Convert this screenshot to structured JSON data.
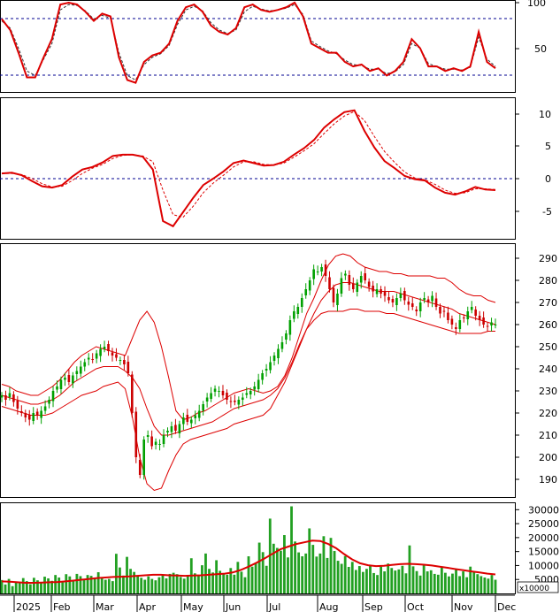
{
  "chart_data": [
    {
      "type": "line",
      "panel": "oscillator-top",
      "ylim": [
        0,
        100
      ],
      "y_ticks": [
        "100",
        "50"
      ],
      "reference_lines": [
        80,
        20
      ],
      "series": [
        {
          "values": [
            82,
            70,
            45,
            18,
            18,
            40,
            60,
            98,
            100,
            98,
            90,
            80,
            88,
            85,
            40,
            15,
            12,
            35,
            42,
            45,
            55,
            80,
            95,
            98,
            90,
            75,
            68,
            65,
            72,
            95,
            98,
            92,
            90,
            92,
            95,
            100,
            85,
            55,
            50,
            45,
            45,
            35,
            30,
            32,
            25,
            28,
            20,
            25,
            35,
            60,
            50,
            30,
            30,
            25,
            28,
            25,
            30,
            68,
            35,
            28
          ]
        },
        {
          "values": [
            80,
            72,
            50,
            25,
            20,
            38,
            55,
            92,
            98,
            97,
            91,
            82,
            86,
            83,
            45,
            20,
            15,
            32,
            40,
            44,
            53,
            76,
            92,
            96,
            91,
            78,
            70,
            66,
            70,
            90,
            96,
            93,
            91,
            92,
            94,
            98,
            87,
            58,
            52,
            47,
            44,
            37,
            32,
            31,
            27,
            27,
            22,
            24,
            32,
            55,
            50,
            33,
            30,
            27,
            27,
            26,
            29,
            62,
            38,
            30
          ]
        }
      ]
    },
    {
      "type": "line",
      "panel": "macd",
      "ylim": [
        -9,
        12
      ],
      "y_ticks": [
        "10",
        "5",
        "0",
        "-5"
      ],
      "reference_lines": [
        0
      ],
      "series": [
        {
          "values": [
            0.6,
            0.7,
            0.3,
            -0.6,
            -1.4,
            -1.6,
            -1.2,
            0.1,
            1.2,
            1.6,
            2.3,
            3.3,
            3.5,
            3.5,
            3.2,
            1.2,
            -6.8,
            -7.6,
            -5.4,
            -3.2,
            -1.2,
            -0.2,
            0.9,
            2.2,
            2.6,
            2.2,
            1.8,
            1.9,
            2.4,
            3.5,
            4.5,
            5.8,
            7.7,
            9.0,
            10.1,
            10.4,
            7.2,
            4.6,
            2.5,
            1.4,
            0.2,
            -0.3,
            -0.5,
            -1.6,
            -2.4,
            -2.7,
            -2.2,
            -1.5,
            -1.9,
            -2.0
          ]
        },
        {
          "values": [
            0.6,
            0.6,
            0.4,
            -0.2,
            -1.0,
            -1.5,
            -1.4,
            -0.5,
            0.6,
            1.4,
            2.0,
            2.9,
            3.4,
            3.5,
            3.3,
            2.4,
            -2.0,
            -5.8,
            -6.2,
            -4.5,
            -2.4,
            -0.9,
            0.3,
            1.6,
            2.4,
            2.4,
            2.0,
            1.9,
            2.2,
            3.1,
            4.1,
            5.2,
            6.8,
            8.3,
            9.5,
            10.2,
            8.8,
            6.3,
            4.0,
            2.3,
            0.8,
            -0.1,
            -0.4,
            -1.1,
            -2.0,
            -2.5,
            -2.4,
            -1.8,
            -1.8,
            -1.9
          ]
        }
      ]
    },
    {
      "type": "candlestick",
      "panel": "price",
      "ylim": [
        182,
        296
      ],
      "y_ticks": [
        "290",
        "280",
        "270",
        "260",
        "250",
        "240",
        "230",
        "220",
        "210",
        "200",
        "190"
      ],
      "close": [
        228,
        226,
        229,
        225,
        222,
        220,
        218,
        217,
        220,
        219,
        221,
        223,
        226,
        230,
        232,
        235,
        236,
        234,
        237,
        239,
        241,
        243,
        245,
        244,
        247,
        249,
        250,
        248,
        246,
        245,
        244,
        242,
        238,
        220,
        200,
        192,
        208,
        210,
        205,
        207,
        206,
        210,
        212,
        214,
        212,
        215,
        218,
        216,
        217,
        219,
        221,
        224,
        227,
        229,
        231,
        230,
        228,
        226,
        225,
        225,
        226,
        227,
        229,
        230,
        232,
        235,
        238,
        240,
        243,
        246,
        249,
        252,
        256,
        262,
        266,
        268,
        272,
        276,
        280,
        285,
        284,
        286,
        282,
        276,
        270,
        274,
        281,
        283,
        278,
        276,
        279,
        282,
        280,
        277,
        275,
        276,
        274,
        273,
        271,
        270,
        272,
        274,
        271,
        269,
        268,
        266,
        270,
        272,
        270,
        273,
        268,
        265,
        266,
        262,
        260,
        258,
        262,
        263,
        266,
        268,
        264,
        262,
        260,
        259,
        261,
        260
      ],
      "upper_band": [
        233,
        232,
        230,
        229,
        228,
        228,
        230,
        232,
        235,
        239,
        243,
        246,
        248,
        250,
        249,
        248,
        247,
        246,
        254,
        262,
        266,
        261,
        250,
        236,
        221,
        217,
        218,
        220,
        221,
        223,
        225,
        227,
        229,
        230,
        231,
        230,
        229,
        230,
        232,
        237,
        245,
        255,
        265,
        272,
        280,
        287,
        291,
        292,
        291,
        288,
        286,
        285,
        284,
        284,
        283,
        283,
        282,
        282,
        282,
        282,
        281,
        281,
        279,
        276,
        274,
        273,
        273,
        271,
        270
      ],
      "middle_band": [
        228,
        227,
        226,
        225,
        224,
        224,
        225,
        226,
        228,
        231,
        234,
        236,
        238,
        240,
        241,
        241,
        241,
        239,
        236,
        231,
        222,
        214,
        210,
        210,
        211,
        212,
        213,
        214,
        215,
        216,
        218,
        220,
        222,
        223,
        224,
        225,
        226,
        228,
        231,
        236,
        243,
        251,
        258,
        265,
        271,
        275,
        278,
        279,
        279,
        278,
        277,
        276,
        275,
        275,
        275,
        274,
        273,
        272,
        271,
        270,
        269,
        268,
        267,
        265,
        264,
        263,
        262,
        261,
        260
      ],
      "lower_band": [
        223,
        222,
        221,
        220,
        219,
        219,
        219,
        220,
        222,
        224,
        226,
        228,
        229,
        230,
        232,
        233,
        234,
        231,
        218,
        200,
        188,
        185,
        186,
        194,
        201,
        206,
        208,
        209,
        210,
        211,
        212,
        213,
        215,
        216,
        217,
        218,
        219,
        222,
        228,
        234,
        242,
        250,
        258,
        262,
        265,
        266,
        266,
        266,
        267,
        267,
        266,
        266,
        266,
        265,
        265,
        264,
        263,
        262,
        261,
        260,
        259,
        258,
        257,
        256,
        256,
        256,
        256,
        257,
        257
      ]
    },
    {
      "type": "bar",
      "panel": "volume",
      "ylim": [
        0,
        32000
      ],
      "unit_label": "x10000",
      "y_ticks": [
        "30000",
        "25000",
        "20000",
        "15000",
        "10000",
        "5000"
      ],
      "values": [
        4800,
        3200,
        5200,
        2600,
        4200,
        3800,
        5500,
        4400,
        3300,
        5600,
        4700,
        3900,
        6000,
        5400,
        4500,
        6600,
        5700,
        4300,
        6900,
        6100,
        4600,
        7000,
        6200,
        5100,
        6600,
        6300,
        5500,
        7600,
        5400,
        4900,
        5200,
        4400,
        14200,
        9300,
        6400,
        13100,
        8800,
        7700,
        6300,
        5600,
        4900,
        6100,
        5200,
        4700,
        5800,
        6400,
        5400,
        7000,
        7400,
        6900,
        5900,
        5300,
        6600,
        12600,
        7200,
        6400,
        10100,
        14300,
        8800,
        7500,
        11900,
        8100,
        7200,
        6700,
        9100,
        6700,
        11300,
        7800,
        5800,
        13300,
        9600,
        10700,
        18200,
        14800,
        9900,
        26800,
        17800,
        16300,
        15300,
        20900,
        12900,
        31200,
        18600,
        14700,
        13300,
        14300,
        23300,
        17400,
        13200,
        14300,
        20500,
        12700,
        19900,
        15200,
        11700,
        10600,
        13400,
        9500,
        11300,
        8400,
        9800,
        7700,
        8800,
        9900,
        7300,
        6600,
        9600,
        7900,
        10700,
        9100,
        8200,
        8600,
        9900,
        7200,
        17200,
        9700,
        8000,
        6400,
        10100,
        7900,
        8300,
        7000,
        6700,
        9200,
        7400,
        6100,
        7100,
        8500,
        6200,
        7900,
        5800,
        9600,
        7600,
        6900,
        6200,
        5700,
        5300,
        6600,
        4900
      ],
      "ma_values": [
        4300,
        4200,
        4000,
        3800,
        3800,
        3900,
        4000,
        4100,
        4300,
        4600,
        4900,
        5200,
        5500,
        5700,
        5900,
        6000,
        6100,
        6300,
        6500,
        6700,
        6700,
        6500,
        6400,
        6300,
        6400,
        6500,
        6700,
        6900,
        7100,
        7500,
        8400,
        9600,
        11000,
        12500,
        14200,
        15800,
        16800,
        17700,
        18300,
        18900,
        18800,
        17700,
        16200,
        14100,
        12200,
        10800,
        10100,
        9800,
        9900,
        10200,
        10500,
        10600,
        10500,
        10300,
        10000,
        9600,
        9200,
        8700,
        8300,
        7900,
        7500,
        7100,
        6800
      ]
    }
  ],
  "x_axis": {
    "labels": [
      "2025",
      "Feb",
      "Mar",
      "Apr",
      "May",
      "Jun",
      "Jul",
      "Aug",
      "Sep",
      "Oct",
      "Nov",
      "Dec"
    ]
  },
  "colors": {
    "up_candle": "#00a000",
    "down_candle": "#cc0000",
    "line_main": "#dd0000",
    "volume_bar": "#22a022",
    "reference_line": "#000090"
  }
}
